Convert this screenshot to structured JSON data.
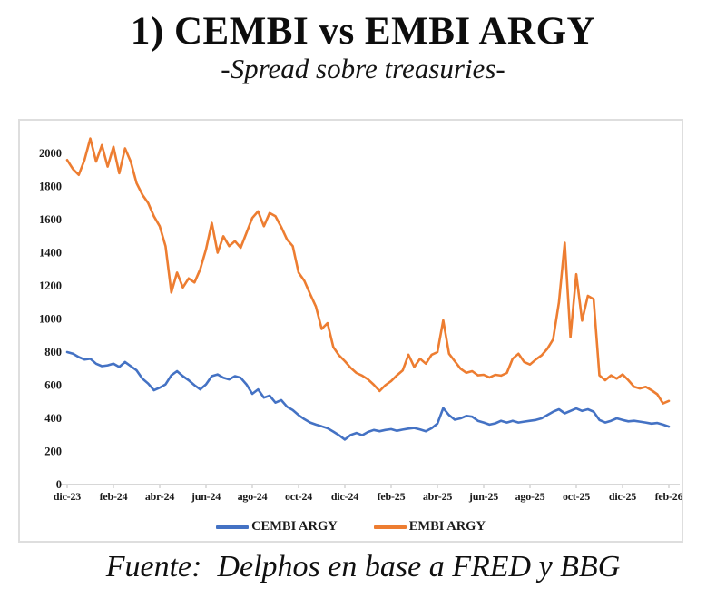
{
  "header": {
    "title": "1) CEMBI vs EMBI ARGY",
    "subtitle": "-Spread sobre treasuries-"
  },
  "footer": {
    "source": "Fuente:  Delphos en base a FRED y BBG"
  },
  "legend": {
    "cembi_label": "CEMBI ARGY",
    "embi_label": "EMBI ARGY"
  },
  "colors": {
    "cembi_blue": "#4472C4",
    "embi_orange": "#ED7D31",
    "axis_gray": "#bfbfbf",
    "box_border": "#dedede",
    "text": "#1a1a1a"
  },
  "chart_data": {
    "type": "line",
    "title": "1) CEMBI vs EMBI ARGY",
    "subtitle": "-Spread sobre treasuries-",
    "xlabel": "",
    "ylabel": "",
    "ylim": [
      0,
      2000
    ],
    "y_ticks": [
      0,
      200,
      400,
      600,
      800,
      1000,
      1200,
      1400,
      1600,
      1800,
      2000
    ],
    "x_tick_labels": [
      "dic-23",
      "feb-24",
      "abr-24",
      "jun-24",
      "ago-24",
      "oct-24",
      "dic-24",
      "feb-25",
      "abr-25",
      "jun-25",
      "ago-25",
      "oct-25",
      "dic-25",
      "feb-26"
    ],
    "x_tick_months": [
      0,
      2,
      4,
      6,
      8,
      10,
      12,
      14,
      16,
      18,
      20,
      22,
      24,
      26
    ],
    "x_unit": "months since dic-23",
    "x_start": 0,
    "x_step": 0.25,
    "grid": false,
    "legend_position": "bottom",
    "series": [
      {
        "id": "cembi-argy",
        "name": "CEMBI ARGY",
        "color": "#4472C4",
        "values": [
          800,
          790,
          770,
          755,
          760,
          730,
          715,
          720,
          730,
          710,
          740,
          715,
          690,
          640,
          610,
          570,
          585,
          605,
          660,
          685,
          655,
          630,
          600,
          575,
          605,
          655,
          665,
          645,
          635,
          655,
          645,
          605,
          548,
          575,
          525,
          537,
          495,
          510,
          470,
          450,
          420,
          395,
          375,
          362,
          352,
          340,
          320,
          298,
          272,
          300,
          312,
          298,
          318,
          330,
          322,
          330,
          335,
          325,
          332,
          338,
          342,
          333,
          322,
          340,
          368,
          462,
          420,
          392,
          400,
          415,
          410,
          385,
          375,
          362,
          370,
          385,
          375,
          385,
          375,
          380,
          385,
          390,
          400,
          420,
          440,
          455,
          430,
          445,
          460,
          445,
          455,
          440,
          390,
          375,
          385,
          400,
          390,
          382,
          385,
          380,
          375,
          368,
          372,
          362,
          350
        ]
      },
      {
        "id": "embi-argy",
        "name": "EMBI ARGY",
        "color": "#ED7D31",
        "values": [
          1960,
          1905,
          1870,
          1960,
          2090,
          1950,
          2050,
          1920,
          2040,
          1880,
          2030,
          1950,
          1820,
          1750,
          1700,
          1620,
          1560,
          1440,
          1160,
          1280,
          1190,
          1245,
          1220,
          1300,
          1420,
          1580,
          1400,
          1500,
          1440,
          1470,
          1430,
          1520,
          1610,
          1650,
          1560,
          1640,
          1620,
          1555,
          1480,
          1440,
          1280,
          1230,
          1150,
          1075,
          940,
          975,
          830,
          780,
          745,
          705,
          674,
          658,
          635,
          603,
          565,
          600,
          625,
          660,
          690,
          784,
          710,
          760,
          730,
          784,
          800,
          992,
          790,
          745,
          700,
          675,
          685,
          660,
          663,
          647,
          663,
          658,
          674,
          760,
          790,
          740,
          725,
          755,
          780,
          820,
          877,
          1100,
          1460,
          890,
          1270,
          990,
          1140,
          1120,
          660,
          630,
          660,
          640,
          665,
          630,
          590,
          580,
          590,
          570,
          545,
          490,
          505
        ]
      }
    ]
  }
}
